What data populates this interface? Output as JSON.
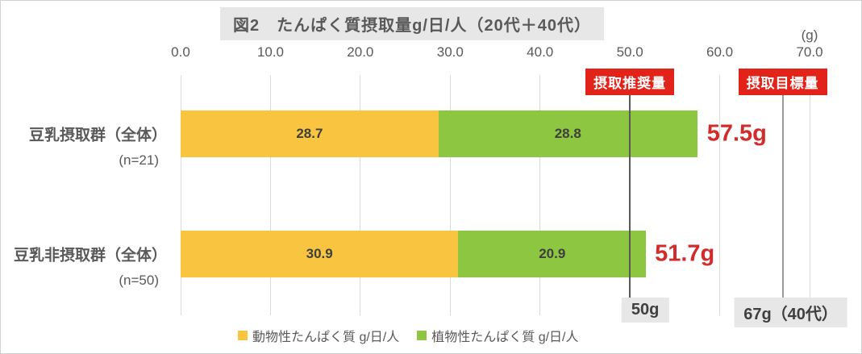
{
  "title": {
    "text": "図2　たんぱく質摂取量g/日/人（20代＋40代）"
  },
  "axis_unit": "(g)",
  "colors": {
    "title_bg": "#e7e7e7",
    "title_text": "#595959",
    "gridline": "#d9d9d9",
    "tick_text": "#595959",
    "segment_label_text": "#3f3f3f",
    "total_text": "#d22b2b",
    "badge_bg": "#e2231a",
    "badge_text": "#ffffff",
    "bottom_box_bg": "#e7e7e7",
    "animal_protein": "#f9c440",
    "plant_protein": "#8dc640"
  },
  "chart_data": {
    "type": "bar",
    "orientation": "horizontal",
    "stacked": true,
    "title": "図2 たんぱく質摂取量g/日/人（20代＋40代）",
    "xlabel": "",
    "ylabel": "",
    "unit_label": "(g)",
    "xlim": [
      0,
      70
    ],
    "ticks": [
      0,
      10,
      20,
      30,
      40,
      50,
      60,
      70
    ],
    "tick_labels": [
      "0.0",
      "10.0",
      "20.0",
      "30.0",
      "40.0",
      "50.0",
      "60.0",
      "70.0"
    ],
    "grid": true,
    "legend_position": "bottom",
    "categories": [
      {
        "label": "豆乳摂取群（全体）",
        "sublabel": "(n=21)"
      },
      {
        "label": "豆乳非摂取群（全体）",
        "sublabel": "(n=50)"
      }
    ],
    "series": [
      {
        "name": "動物性たんぱく質 g/日/人",
        "color": "#f9c440",
        "values": [
          28.7,
          30.9
        ]
      },
      {
        "name": "植物性たんぱく質 g/日/人",
        "color": "#8dc640",
        "values": [
          28.8,
          20.9
        ]
      }
    ],
    "totals": [
      {
        "value": 57.5,
        "text": "57.5g"
      },
      {
        "value": 51.7,
        "text": "51.7g"
      }
    ],
    "reference_lines": [
      {
        "value": 50,
        "badge": "摂取推奨量",
        "bottom_label": "50g",
        "line_color": "#595959",
        "box_offset": 19
      },
      {
        "value": 67,
        "badge": "摂取目標量",
        "bottom_label": "67g（40代）",
        "line_color": "#9a9a9a",
        "box_offset": 10
      }
    ]
  }
}
